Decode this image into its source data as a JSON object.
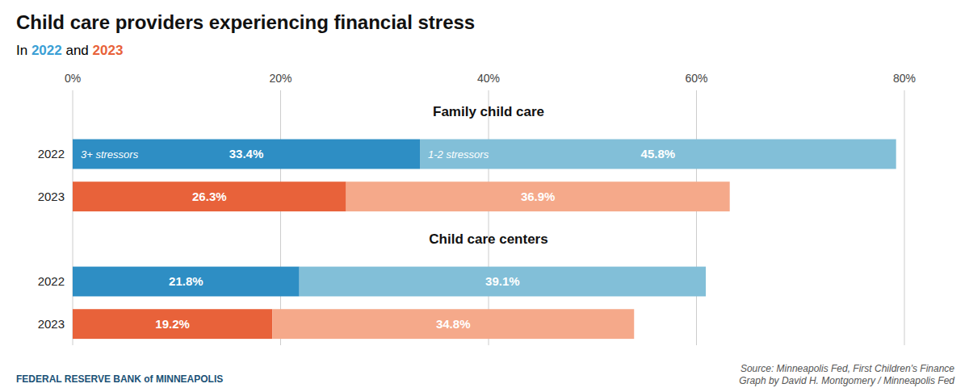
{
  "chart_data": {
    "type": "bar",
    "orientation": "horizontal",
    "stacked": true,
    "data_labels": true,
    "grid": true,
    "title": "Child care providers experiencing financial stress",
    "subtitle": [
      {
        "text": "In ",
        "color": "#000000"
      },
      {
        "text": "2022",
        "color": "#3a9fd5"
      },
      {
        "text": " and ",
        "color": "#000000"
      },
      {
        "text": "2023",
        "color": "#e8623a"
      }
    ],
    "groups": [
      {
        "name": "Family child care",
        "categories": [
          "2022",
          "2023"
        ]
      },
      {
        "name": "Child care centers",
        "categories": [
          "2022",
          "2023"
        ]
      }
    ],
    "series": [
      {
        "name": "3+ stressors",
        "values": [
          33.4,
          26.3,
          21.8,
          19.2
        ],
        "value_labels": [
          "33.4%",
          "26.3%",
          "21.8%",
          "19.2%"
        ],
        "colors": [
          "#2e8ec4",
          "#e8623a",
          "#2e8ec4",
          "#e8623a"
        ]
      },
      {
        "name": "1-2 stressors",
        "values": [
          45.8,
          36.9,
          39.1,
          34.8
        ],
        "value_labels": [
          "45.8%",
          "36.9%",
          "39.1%",
          "34.8%"
        ],
        "colors": [
          "#82bfd8",
          "#f5a98a",
          "#82bfd8",
          "#f5a98a"
        ]
      }
    ],
    "xlim": [
      0,
      80
    ],
    "xticks": [
      {
        "value": 0,
        "label": "0%"
      },
      {
        "value": 20,
        "label": "20%"
      },
      {
        "value": 40,
        "label": "40%"
      },
      {
        "value": 60,
        "label": "60%"
      },
      {
        "value": 80,
        "label": "80%"
      }
    ],
    "annotations": [
      "Source: Minneapolis Fed, First Children's Finance\nGraph by David H. Montgomery / Minneapolis Fed",
      "FEDERAL RESERVE BANK of MINNEAPOLIS"
    ]
  }
}
